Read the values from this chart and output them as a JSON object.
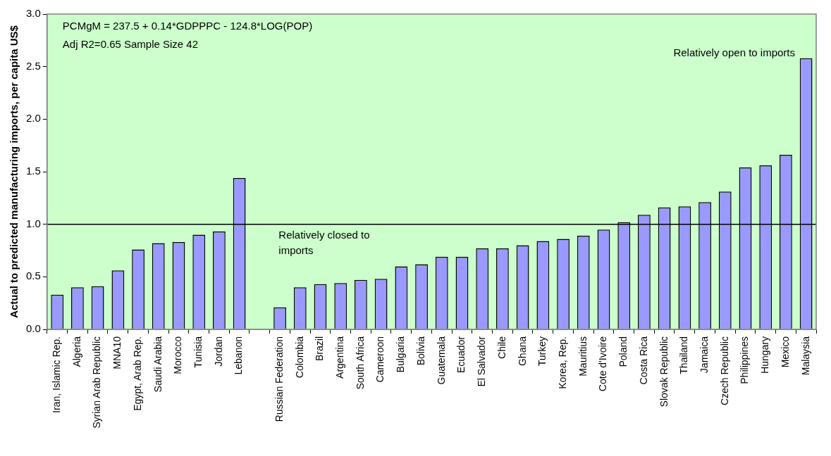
{
  "chart_data": {
    "type": "bar",
    "ylabel": "Actual to predicted manufacturing imports, per capita US$",
    "categories": [
      "Iran, Islamic Rep.",
      "Algeria",
      "Syrian Arab Republic",
      "MNA10",
      "Egypt, Arab Rep.",
      "Saudi Arabia",
      "Morocco",
      "Tunisia",
      "Jordan",
      "Lebanon",
      null,
      "Russian Federation",
      "Colombia",
      "Brazil",
      "Argentina",
      "South Africa",
      "Cameroon",
      "Bulgaria",
      "Bolivia",
      "Guatemala",
      "Ecuador",
      "El Salvador",
      "Chile",
      "Ghana",
      "Turkey",
      "Korea, Rep.",
      "Mauritius",
      "Cote d'Ivoire",
      "Poland",
      "Costa Rica",
      "Slovak Republic",
      "Thailand",
      "Jamaica",
      "Czech Republic",
      "Philippines",
      "Hungary",
      "Mexico",
      "Malaysia"
    ],
    "values": [
      0.33,
      0.4,
      0.41,
      0.56,
      0.76,
      0.82,
      0.83,
      0.9,
      0.93,
      1.44,
      null,
      0.21,
      0.4,
      0.43,
      0.44,
      0.47,
      0.48,
      0.6,
      0.62,
      0.69,
      0.69,
      0.77,
      0.77,
      0.8,
      0.84,
      0.86,
      0.89,
      0.95,
      1.02,
      1.09,
      1.16,
      1.17,
      1.21,
      1.31,
      1.54,
      1.56,
      1.66,
      2.58
    ],
    "color": "#9999ff",
    "ylim": [
      0,
      3
    ],
    "yticks": [
      {
        "value": 0,
        "label": "0.0"
      },
      {
        "value": 0.5,
        "label": "0.5"
      },
      {
        "value": 1,
        "label": "1.0"
      },
      {
        "value": 1.5,
        "label": "1.5"
      },
      {
        "value": 2,
        "label": "2.0"
      },
      {
        "value": 2.5,
        "label": "2.5"
      },
      {
        "value": 3,
        "label": "3.0"
      }
    ],
    "ref_lines": [
      {
        "axis": "y",
        "value": 1,
        "color": "#000000"
      }
    ],
    "annotations": [
      "PCMgM = 237.5 + 0.14*GDPPPC - 124.8*LOG(POP)",
      "Adj R2=0.65 Sample Size 42",
      "Relatively open to imports",
      "Relatively closed to\nimports"
    ],
    "grid": false,
    "legend": false
  }
}
